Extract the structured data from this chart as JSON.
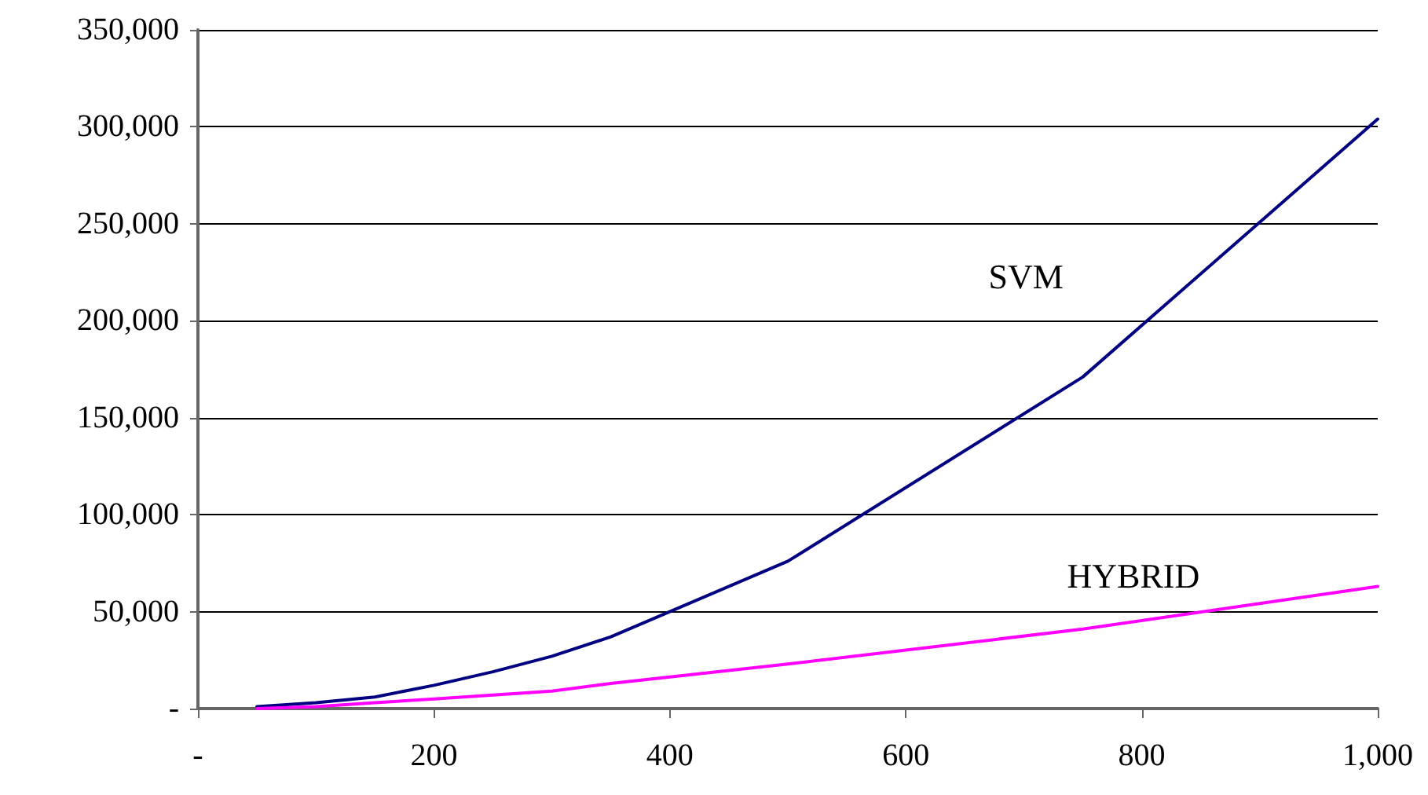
{
  "chart_data": {
    "type": "line",
    "x": [
      50,
      100,
      150,
      200,
      250,
      300,
      350,
      500,
      750,
      1000
    ],
    "series": [
      {
        "name": "SVM",
        "color": "#000080",
        "values": [
          1000,
          3000,
          6000,
          12000,
          19000,
          27000,
          37000,
          76000,
          171000,
          304000
        ]
      },
      {
        "name": "HYBRID",
        "color": "#ff00ff",
        "values": [
          0,
          1000,
          3000,
          5000,
          7000,
          9000,
          13000,
          23000,
          41000,
          63000
        ]
      }
    ],
    "xlim": [
      0,
      1000
    ],
    "xticks": [
      {
        "value": 0,
        "label": "-"
      },
      200,
      400,
      600,
      800,
      {
        "value": 1000,
        "label": "1,000"
      }
    ],
    "ylim": [
      0,
      350000
    ],
    "yticks": [
      {
        "value": 0,
        "label": "-"
      },
      {
        "value": 50000,
        "label": "50,000"
      },
      {
        "value": 100000,
        "label": "100,000"
      },
      {
        "value": 150000,
        "label": "150,000"
      },
      {
        "value": 200000,
        "label": "200,000"
      },
      {
        "value": 250000,
        "label": "250,000"
      },
      {
        "value": 300000,
        "label": "300,000"
      },
      {
        "value": 350000,
        "label": "350,000"
      }
    ],
    "grid": "y",
    "legend": false,
    "marker": "none",
    "line_style": "solid"
  }
}
